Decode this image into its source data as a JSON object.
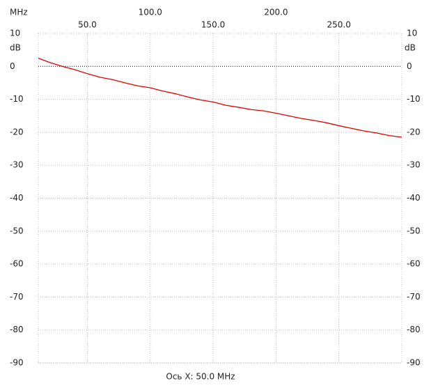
{
  "chart_data": {
    "type": "line",
    "x_unit": "MHz",
    "y_unit": "dB",
    "x_axis_label": "Ось X: 50.0 MHz",
    "x": [
      11,
      20,
      30,
      40,
      50,
      60,
      70,
      80,
      90,
      100,
      110,
      120,
      130,
      140,
      150,
      160,
      170,
      180,
      190,
      200,
      210,
      220,
      230,
      240,
      250,
      260,
      270,
      280,
      290,
      300
    ],
    "series": [
      {
        "color": "#e00000",
        "values": [
          2.5,
          1.2,
          0.0,
          -1.0,
          -2.2,
          -3.3,
          -4.0,
          -5.0,
          -5.9,
          -6.5,
          -7.5,
          -8.3,
          -9.3,
          -10.2,
          -10.8,
          -11.8,
          -12.4,
          -13.1,
          -13.5,
          -14.2,
          -15.0,
          -15.8,
          -16.4,
          -17.1,
          -18.0,
          -18.8,
          -19.6,
          -20.2,
          -21.0,
          -21.5
        ]
      }
    ],
    "xlim": [
      11,
      300
    ],
    "ylim": [
      -90,
      10
    ],
    "xticks": [
      {
        "value": 50,
        "label": "50.0"
      },
      {
        "value": 100,
        "label": "100.0"
      },
      {
        "value": 150,
        "label": "150.0"
      },
      {
        "value": 200,
        "label": "200.0"
      },
      {
        "value": 250,
        "label": "250.0"
      }
    ],
    "yticks": [
      10,
      0,
      -10,
      -20,
      -30,
      -40,
      -50,
      -60,
      -70,
      -80,
      -90
    ],
    "grid": true
  }
}
